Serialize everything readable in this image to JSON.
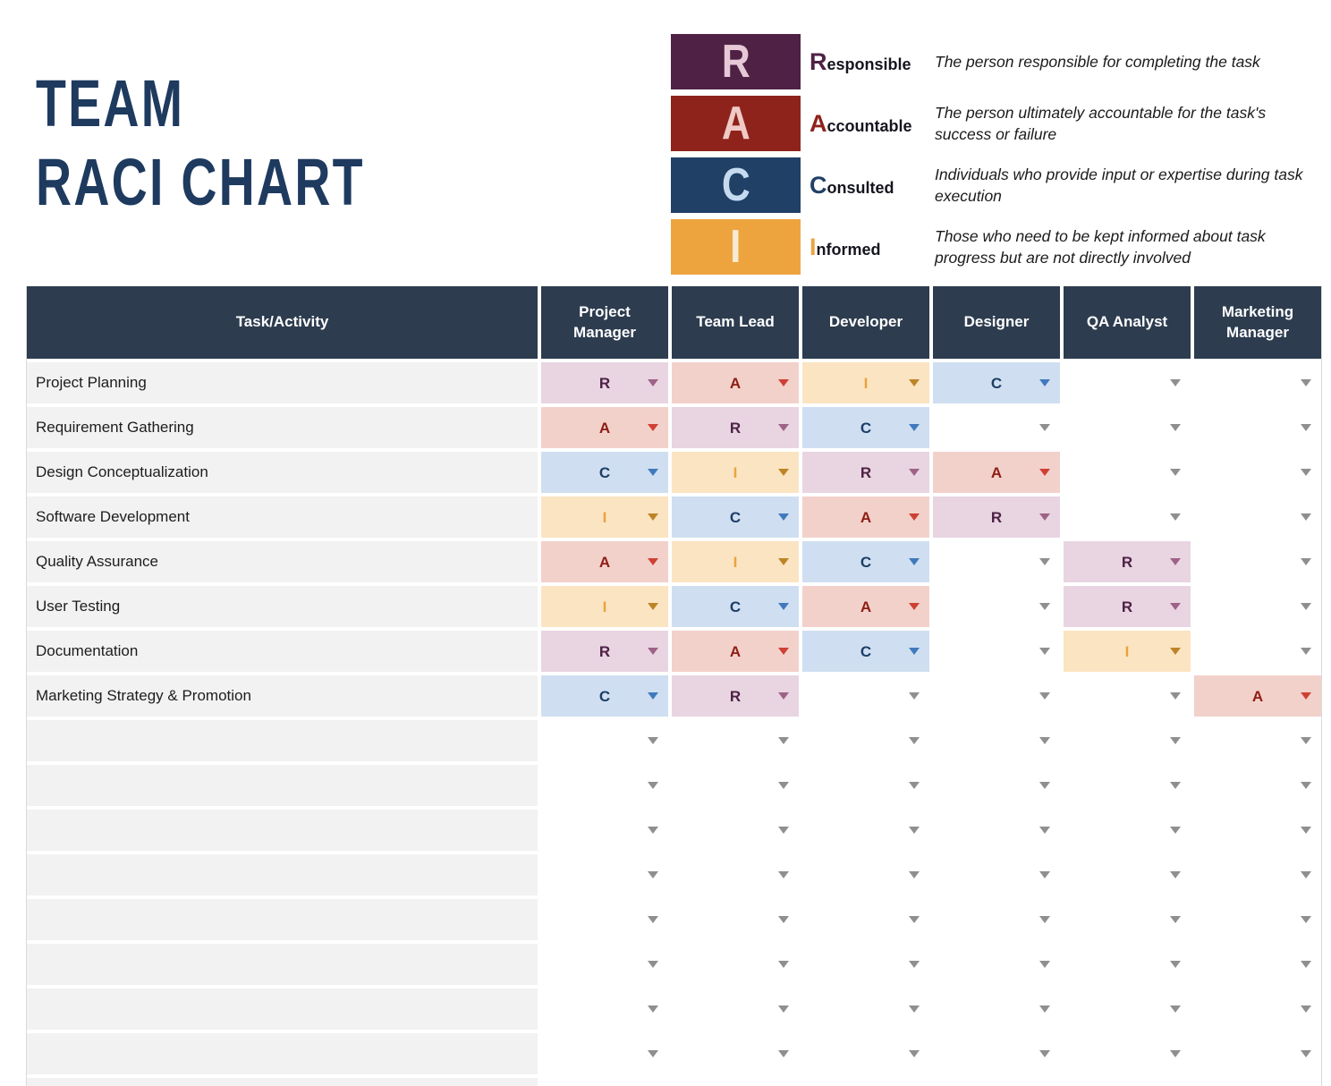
{
  "page": {
    "title_line1": "TEAM",
    "title_line2": "RACI CHART"
  },
  "palette": {
    "title_color": "#1e3a5f",
    "header_bg": "#2d3c4f",
    "header_text": "#ffffff",
    "task_row_bg": "#f2f2f2",
    "task_text": "#1d1d1d",
    "table_border": "#d9d9d9",
    "empty_arrow": "#8f8f8f"
  },
  "legend": {
    "items": [
      {
        "letter": "R",
        "label": "Responsible",
        "description": "The person responsible for completing the task",
        "box_color": "#4e2145",
        "letter_color": "#e6c8d7"
      },
      {
        "letter": "A",
        "label": "Accountable",
        "description": "The person ultimately accountable for the task's success or failure",
        "box_color": "#8e231b",
        "letter_color": "#f0cac6"
      },
      {
        "letter": "C",
        "label": "Consulted",
        "description": "Individuals who provide input or expertise during task execution",
        "box_color": "#204066",
        "letter_color": "#c6daf0"
      },
      {
        "letter": "I",
        "label": "Informed",
        "description": "Those who need to be kept informed about task progress but are not directly involved",
        "box_color": "#eda43f",
        "letter_color": "#f7ead3"
      }
    ]
  },
  "table": {
    "columns": [
      "Task/Activity",
      "Project Manager",
      "Team Lead",
      "Developer",
      "Designer",
      "QA Analyst",
      "Marketing Manager"
    ],
    "rows": [
      {
        "task": "Project Planning",
        "cells": [
          "R",
          "A",
          "I",
          "C",
          "",
          ""
        ]
      },
      {
        "task": "Requirement Gathering",
        "cells": [
          "A",
          "R",
          "C",
          "",
          "",
          ""
        ]
      },
      {
        "task": "Design Conceptualization",
        "cells": [
          "C",
          "I",
          "R",
          "A",
          "",
          ""
        ]
      },
      {
        "task": "Software Development",
        "cells": [
          "I",
          "C",
          "A",
          "R",
          "",
          ""
        ]
      },
      {
        "task": "Quality Assurance",
        "cells": [
          "A",
          "I",
          "C",
          "",
          "R",
          ""
        ]
      },
      {
        "task": "User Testing",
        "cells": [
          "I",
          "C",
          "A",
          "",
          "R",
          ""
        ]
      },
      {
        "task": "Documentation",
        "cells": [
          "R",
          "A",
          "C",
          "",
          "I",
          ""
        ]
      },
      {
        "task": "Marketing Strategy & Promotion",
        "cells": [
          "C",
          "R",
          "",
          "",
          "",
          "A"
        ]
      }
    ],
    "empty_row_count": 9
  },
  "raci_styles": {
    "R": {
      "bg": "#e8d5e1",
      "fg": "#4e2145",
      "arrow": "#9f6287"
    },
    "A": {
      "bg": "#f3d1cb",
      "fg": "#8e1d14",
      "arrow": "#ce4034"
    },
    "C": {
      "bg": "#cfdff1",
      "fg": "#1c3e66",
      "arrow": "#4179bd"
    },
    "I": {
      "bg": "#fbe4c2",
      "fg": "#e9a33d",
      "arrow": "#bd8427"
    }
  }
}
